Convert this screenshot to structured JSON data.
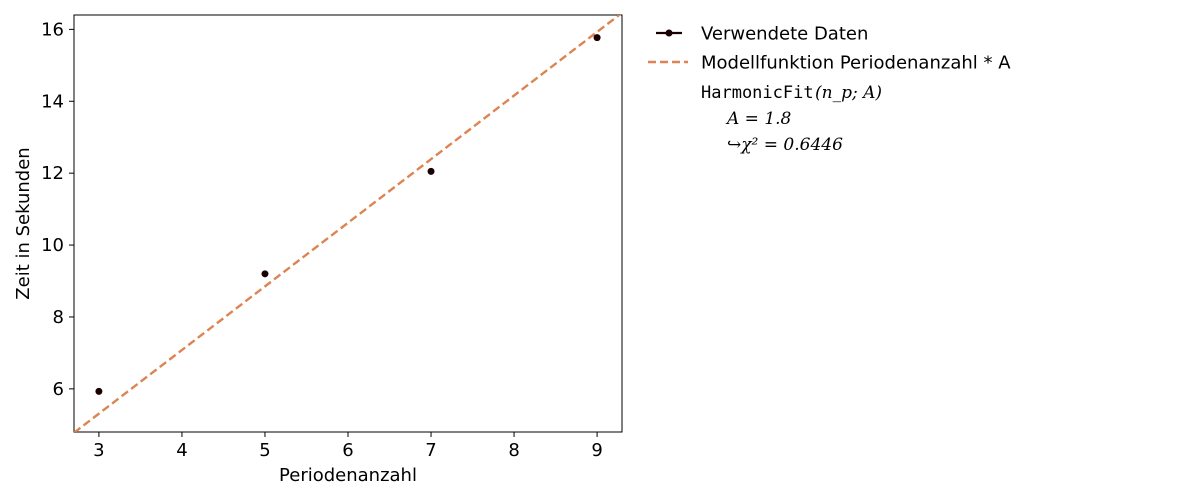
{
  "chart_data": {
    "type": "scatter",
    "xlabel": "Periodenanzahl",
    "ylabel": "Zeit in Sekunden",
    "xlim": [
      2.7,
      9.3
    ],
    "ylim": [
      4.8,
      16.4
    ],
    "x_ticks": [
      3,
      4,
      5,
      6,
      7,
      8,
      9
    ],
    "y_ticks": [
      6,
      8,
      10,
      12,
      14,
      16
    ],
    "grid": false,
    "legend_position": "outside-right",
    "series": [
      {
        "name": "Verwendete Daten",
        "kind": "points",
        "color": "#1a0000",
        "x": [
          3,
          5,
          7,
          9
        ],
        "y": [
          5.93,
          9.2,
          12.05,
          15.77
        ]
      },
      {
        "name": "Modellfunktion Periodenanzahl * A",
        "kind": "dashed-line",
        "color": "#dd8452",
        "slope": 1.77,
        "x": [
          2.7,
          9.3
        ],
        "y": [
          4.78,
          16.46
        ]
      }
    ],
    "annotation": {
      "function": "HarmonicFit",
      "args": "(n_p; A)",
      "param_line": "A = 1.8",
      "chi2_line": "↪χ² = 0.6446"
    }
  }
}
